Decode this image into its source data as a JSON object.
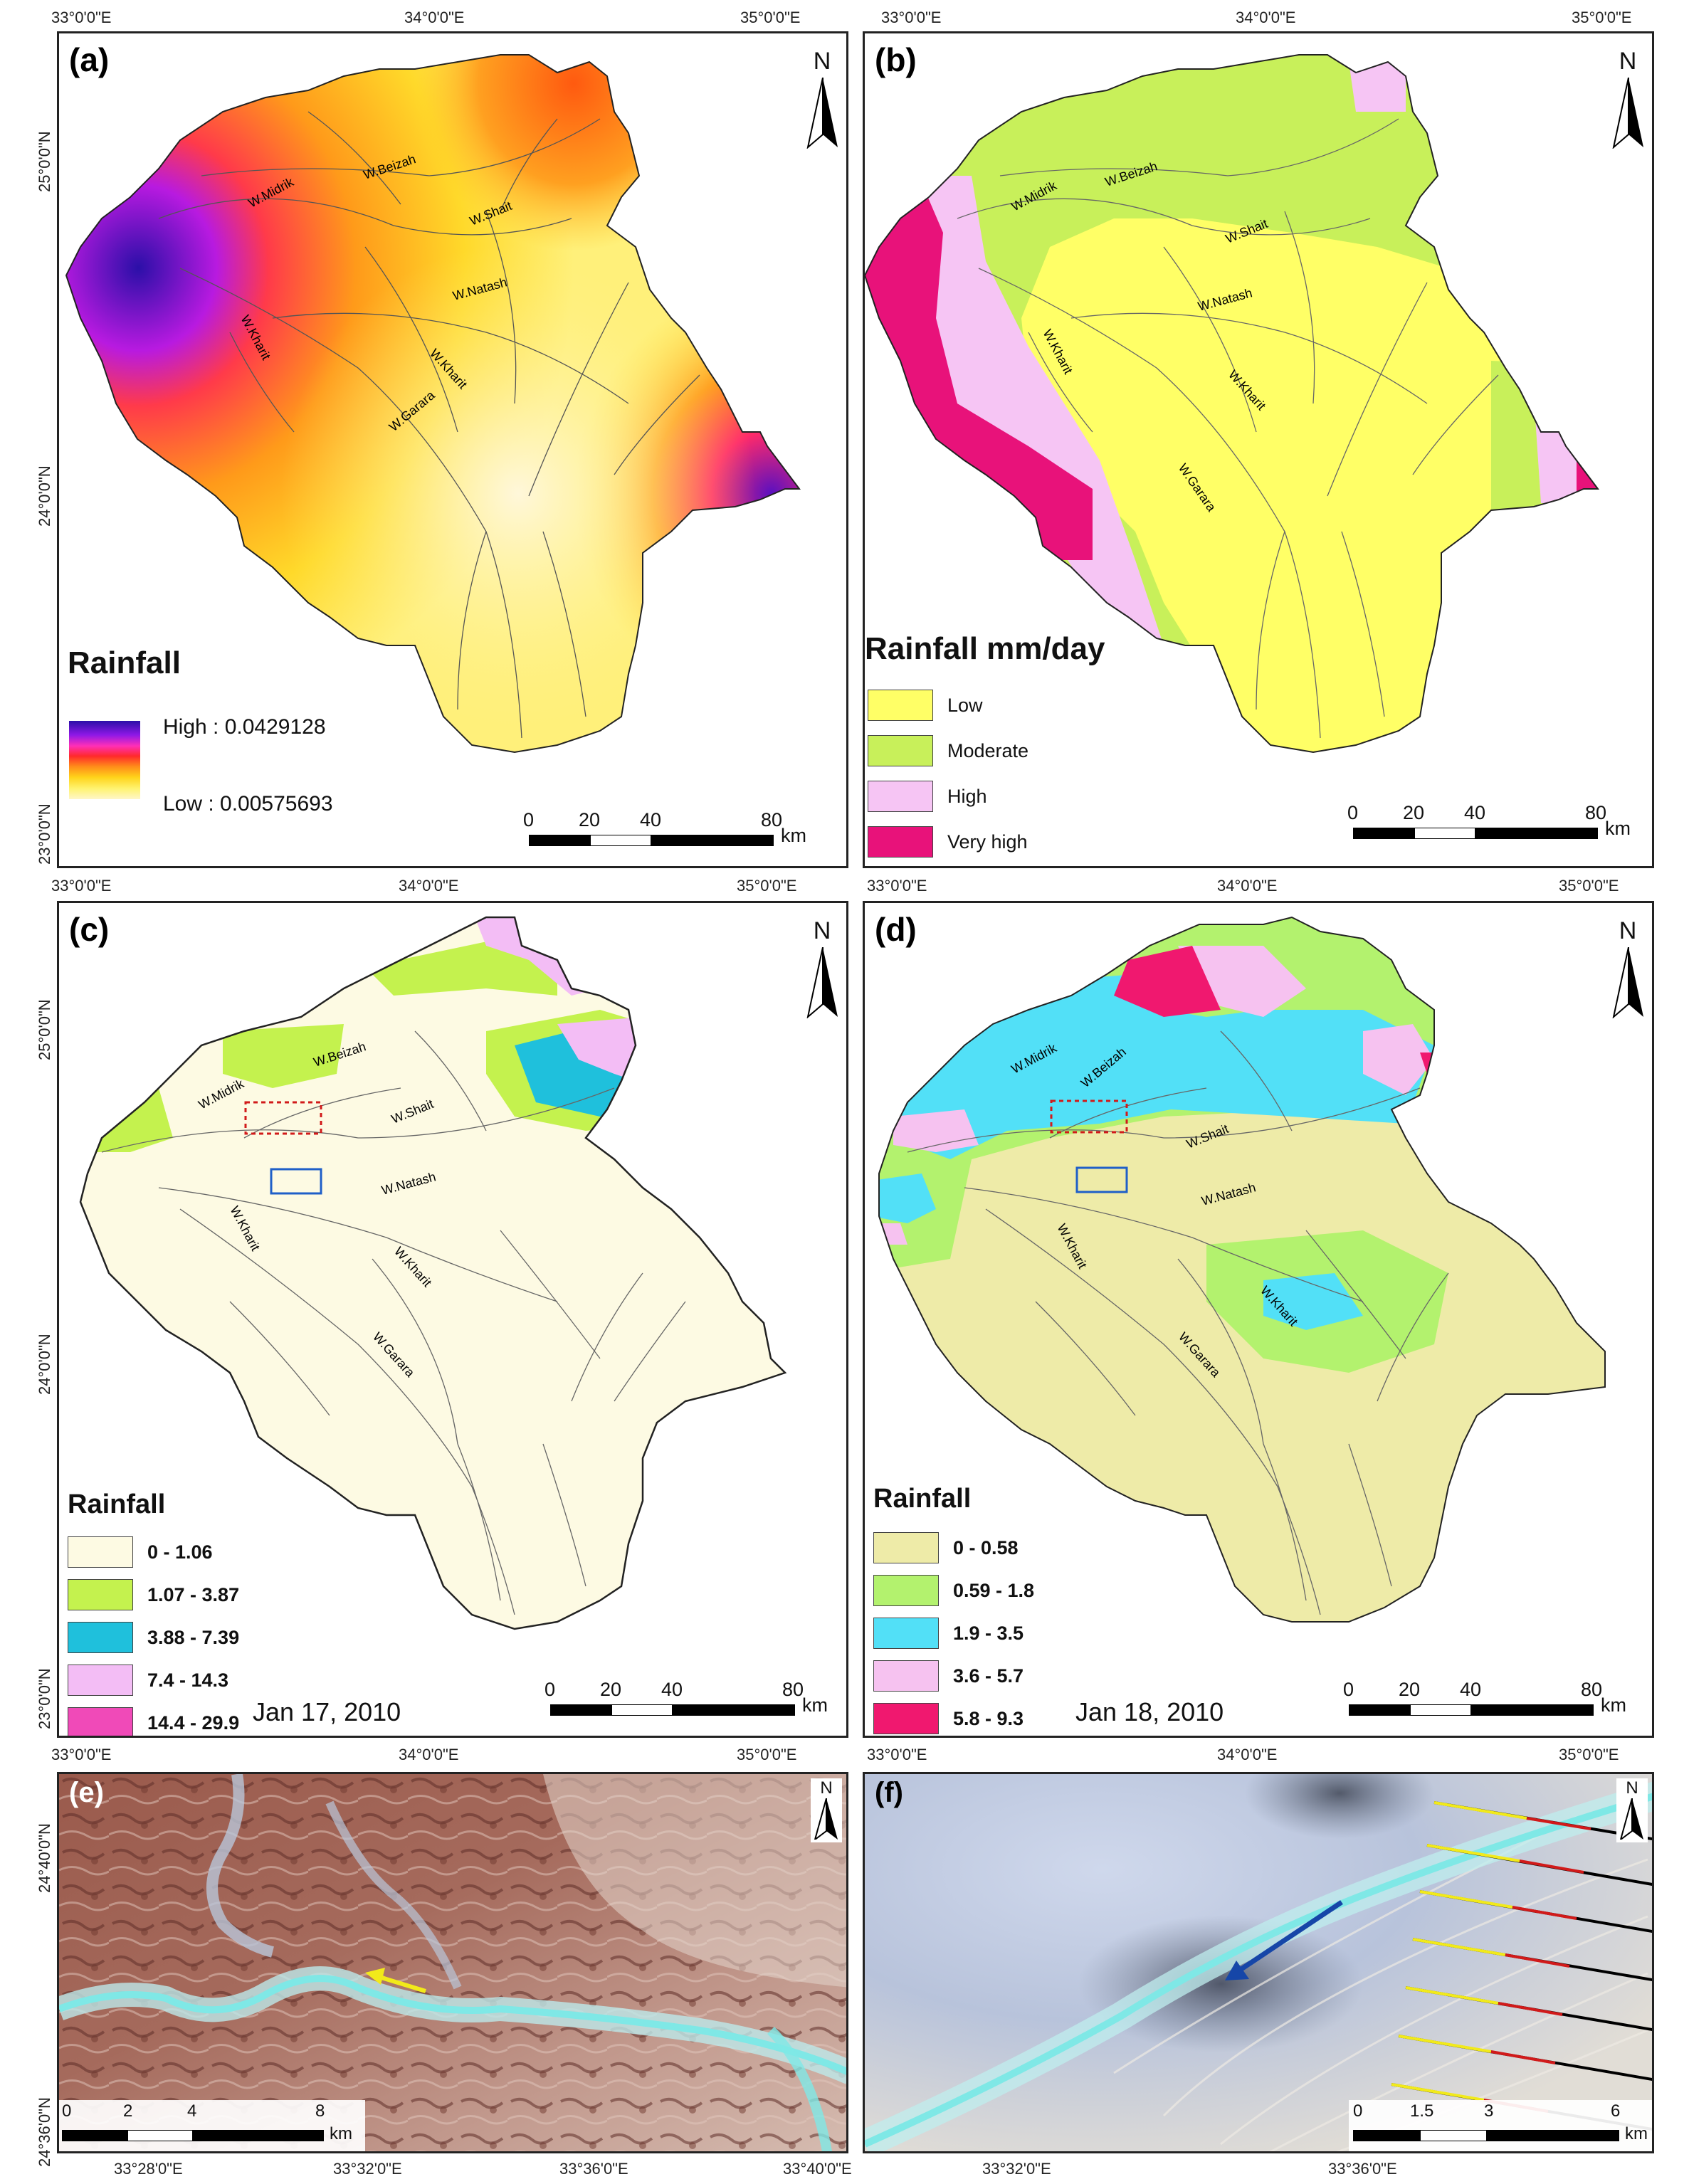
{
  "coords": {
    "lon": [
      "33°0'0\"E",
      "34°0'0\"E",
      "35°0'0\"E"
    ],
    "lat": [
      "25°0'0\"N",
      "24°0'0\"N",
      "23°0'0\"N"
    ],
    "detail_lon_e": [
      "33°28'0\"E",
      "33°32'0\"E",
      "33°36'0\"E",
      "33°40'0\"E"
    ],
    "detail_lat_e": [
      "24°40'0\"N",
      "24°36'0\"N"
    ],
    "detail_lon_f": [
      "33°32'0\"E",
      "33°36'0\"E"
    ]
  },
  "wadis": {
    "midrik": "W.Midrik",
    "beizah": "W.Beizah",
    "shait": "W.Shait",
    "natash": "W.Natash",
    "kharit_w": "W.Kharit",
    "kharit_c": "W.Kharit",
    "garara": "W.Garara"
  },
  "north_label": "N",
  "panels": {
    "a": {
      "label": "(a)",
      "legend_title": "Rainfall",
      "high_label": "High : 0.0429128",
      "low_label": "Low : 0.00575693",
      "scale": {
        "ticks": [
          "0",
          "20",
          "40",
          "80"
        ],
        "unit": "km"
      }
    },
    "b": {
      "label": "(b)",
      "legend_title": "Rainfall mm/day",
      "classes": [
        {
          "label": "Low",
          "color": "#ffff66"
        },
        {
          "label": "Moderate",
          "color": "#c8f05a"
        },
        {
          "label": "High",
          "color": "#f6c5f4"
        },
        {
          "label": "Very high",
          "color": "#e8127a"
        }
      ],
      "scale": {
        "ticks": [
          "0",
          "20",
          "40",
          "80"
        ],
        "unit": "km"
      }
    },
    "c": {
      "label": "(c)",
      "legend_title": "Rainfall",
      "classes": [
        {
          "label": "0 - 1.06",
          "color": "#fdfae3"
        },
        {
          "label": "1.07 - 3.87",
          "color": "#c4f24e"
        },
        {
          "label": "3.88 - 7.39",
          "color": "#1fc0dc"
        },
        {
          "label": "7.4 - 14.3",
          "color": "#f3bdf5"
        },
        {
          "label": "14.4 - 29.9",
          "color": "#f04ab8"
        }
      ],
      "date": "Jan 17, 2010",
      "scale": {
        "ticks": [
          "0",
          "20",
          "40",
          "80"
        ],
        "unit": "km"
      }
    },
    "d": {
      "label": "(d)",
      "legend_title": "Rainfall",
      "classes": [
        {
          "label": "0 - 0.58",
          "color": "#eeeba8"
        },
        {
          "label": "0.59 - 1.8",
          "color": "#b3f26e"
        },
        {
          "label": "1.9 - 3.5",
          "color": "#52e0f7"
        },
        {
          "label": "3.6 - 5.7",
          "color": "#f6c2f0"
        },
        {
          "label": "5.8 - 9.3",
          "color": "#f0186f"
        }
      ],
      "date": "Jan 18, 2010",
      "scale": {
        "ticks": [
          "0",
          "20",
          "40",
          "80"
        ],
        "unit": "km"
      }
    },
    "e": {
      "label": "(e)",
      "scale": {
        "ticks": [
          "0",
          "2",
          "4",
          "8"
        ],
        "unit": "km"
      }
    },
    "f": {
      "label": "(f)",
      "scale": {
        "ticks": [
          "0",
          "1.5",
          "3",
          "6"
        ],
        "unit": "km"
      }
    }
  },
  "colors": {
    "river": "#444444",
    "outline": "#222222",
    "red_box": "#d11a1a",
    "blue_box": "#1f5fc8",
    "yellow_arrow": "#f2ea1a",
    "blue_arrow": "#1646a8",
    "channel": "#7fe8e6"
  }
}
